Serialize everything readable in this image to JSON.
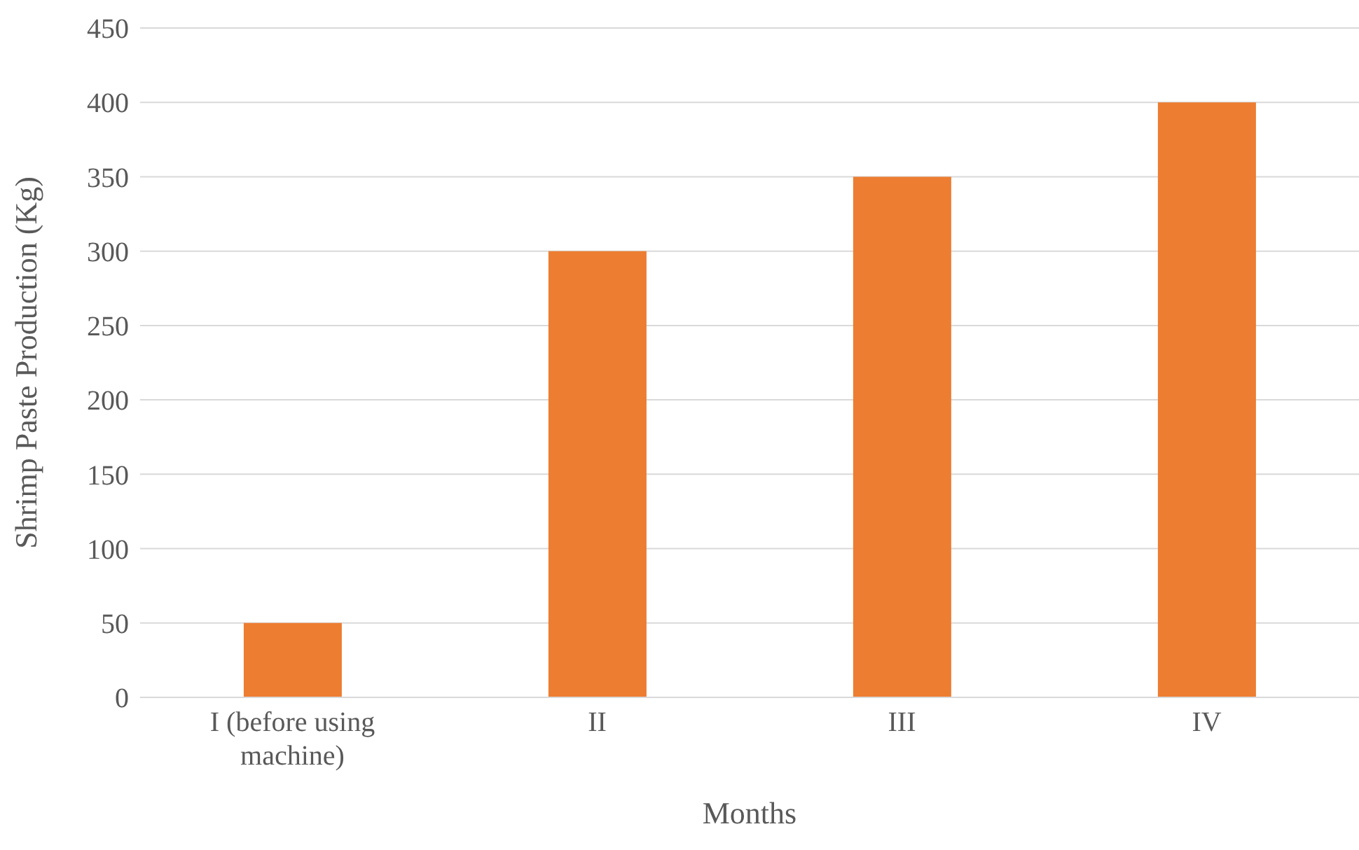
{
  "chart_data": {
    "type": "bar",
    "xlabel": "Months",
    "ylabel": "Shrimp Paste Production (Kg)",
    "categories": [
      "I (before using machine)",
      "II",
      "III",
      "IV"
    ],
    "values": [
      50,
      300,
      350,
      400
    ],
    "color": "#ed7d31",
    "ylim": [
      0,
      450
    ],
    "yticks": [
      0,
      50,
      100,
      150,
      200,
      250,
      300,
      350,
      400,
      450
    ],
    "grid": "y",
    "legend": false
  }
}
